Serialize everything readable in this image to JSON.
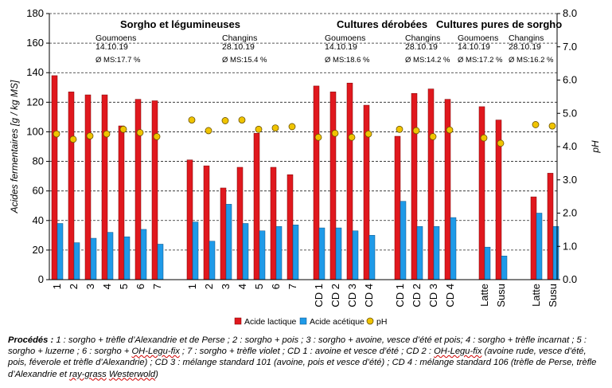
{
  "chart_data": {
    "type": "bar",
    "y_left_label": "Acides fermentaires [g / kg MS]",
    "y_right_label": "pH",
    "y_left_range": [
      0,
      180
    ],
    "y_left_ticks": [
      0,
      20,
      40,
      60,
      80,
      100,
      120,
      140,
      160,
      180
    ],
    "y_right_range": [
      0,
      8
    ],
    "y_right_ticks": [
      "0.0",
      "1.0",
      "2.0",
      "3.0",
      "4.0",
      "5.0",
      "6.0",
      "7.0",
      "8.0"
    ],
    "gridlines": "dashed, every 20 units",
    "categories": [
      "1",
      "2",
      "3",
      "4",
      "5",
      "6",
      "7",
      "1",
      "2",
      "3",
      "4",
      "5",
      "6",
      "7",
      "CD 1",
      "CD 2",
      "CD 3",
      "CD 4",
      "CD 1",
      "CD 2",
      "CD 3",
      "CD 4",
      "Latte",
      "Susu",
      "Latte",
      "Susu"
    ],
    "series": [
      {
        "name": "Acide lactique",
        "color": "#e0181e",
        "values": [
          138,
          127,
          125,
          125,
          104,
          122,
          121,
          81,
          77,
          62,
          76,
          99,
          76,
          71,
          131,
          127,
          133,
          118,
          97,
          126,
          129,
          122,
          117,
          108,
          56,
          72
        ]
      },
      {
        "name": "Acide acétique",
        "color": "#1f9ae8",
        "values": [
          38,
          25,
          28,
          32,
          29,
          34,
          24,
          39,
          26,
          51,
          38,
          33,
          36,
          37,
          35,
          35,
          33,
          30,
          53,
          36,
          36,
          42,
          22,
          16,
          45,
          36
        ]
      },
      {
        "name": "pH",
        "color": "#f0c400",
        "axis": "right",
        "values": [
          4.38,
          4.22,
          4.32,
          4.38,
          4.52,
          4.42,
          4.3,
          4.8,
          4.48,
          4.78,
          4.8,
          4.52,
          4.56,
          4.6,
          4.28,
          4.4,
          4.28,
          4.38,
          4.52,
          4.48,
          4.3,
          4.5,
          4.26,
          4.1,
          4.66,
          4.62
        ]
      }
    ],
    "groups": [
      {
        "title": "Sorgho et légumineuses"
      },
      {
        "title": "Cultures dérobées"
      },
      {
        "title": "Cultures pures de sorgho"
      }
    ],
    "annotations": [
      {
        "site": "Goumoens",
        "date": "14.10.19",
        "ms": "Ø MS:17.7 %"
      },
      {
        "site": "Changins",
        "date": "28.10.19",
        "ms": "Ø MS:15.4 %"
      },
      {
        "site": "Goumoens",
        "date": "14.10.19",
        "ms": "Ø MS:18.6 %"
      },
      {
        "site": "Changins",
        "date": "28.10.19",
        "ms": "Ø MS:14.2 %"
      },
      {
        "site": "Goumoens",
        "date": "14.10.19",
        "ms": "Ø MS:17.2 %"
      },
      {
        "site": "Changins",
        "date": "28.10.19",
        "ms": "Ø MS:16.2 %"
      }
    ],
    "legend": [
      "Acide lactique",
      "Acide acétique",
      "pH"
    ]
  },
  "caption": {
    "lead": "Procédés :",
    "text_1": " 1 : sorgho + trèfle d’Alexandrie et de Perse ; 2 : sorgho + pois ; 3 : sorgho + avoine, vesce d’été et pois; 4 : sorgho + trèfle incarnat ; 5 : sorgho + luzerne ; 6 : sorgho + ",
    "oh_legu_fix_1": "OH-Legu-fix",
    "text_2": " ; 7 : sorgho + trèfle violet ; CD 1 : avoine et vesce d’été ; CD 2 : ",
    "oh_legu_fix_2": "OH-Legu-fix",
    "text_3": " (avoine rude, vesce d’été, pois, féverole et trèfle d’Alexandrie) ; CD 3 : mélange standard 101 (avoine, pois et vesce d’été) ; CD 4 : mélange standard 106 (trèfle de Perse, trèfle d’Alexandrie et ",
    "ray_grass": "ray-grass",
    "space": " ",
    "westerwold": "Westerwold",
    "text_4": ")"
  }
}
